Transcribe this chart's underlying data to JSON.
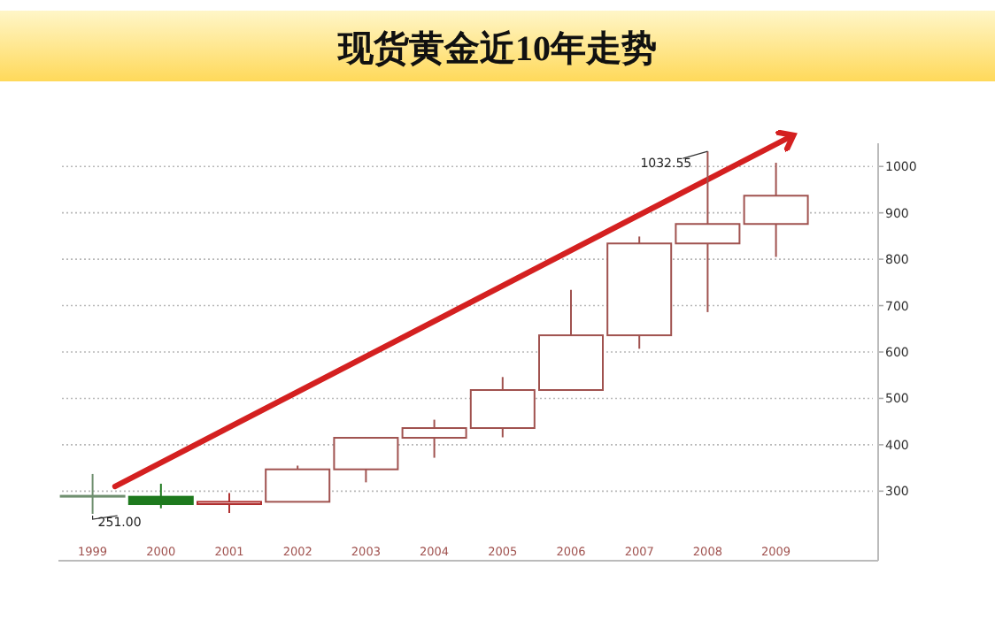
{
  "chart_data": {
    "type": "candlestick",
    "title": "现货黄金近10年走势",
    "categories": [
      "1999",
      "2000",
      "2001",
      "2002",
      "2003",
      "2004",
      "2005",
      "2006",
      "2007",
      "2008",
      "2009"
    ],
    "ohlc": [
      [
        290,
        337,
        251,
        288
      ],
      [
        288,
        316,
        263,
        272
      ],
      [
        272,
        296,
        253,
        277
      ],
      [
        277,
        355,
        277,
        347
      ],
      [
        347,
        416,
        319,
        415
      ],
      [
        415,
        454,
        372,
        436
      ],
      [
        436,
        546,
        416,
        518
      ],
      [
        518,
        734,
        518,
        636
      ],
      [
        636,
        849,
        607,
        834
      ],
      [
        834,
        1032.55,
        686,
        876
      ],
      [
        876,
        1008,
        805,
        937
      ]
    ],
    "colors": [
      "#6f8f6f",
      "#1e7a1e",
      "#b03030",
      "#a0524f",
      "#a0524f",
      "#a0524f",
      "#a0524f",
      "#a0524f",
      "#a0524f",
      "#a0524f",
      "#a0524f"
    ],
    "ylim": [
      150,
      1050
    ],
    "yticks": [
      300,
      400,
      500,
      600,
      700,
      800,
      900,
      1000
    ],
    "grid": "y",
    "annotations": [
      {
        "text": "251.00",
        "x": "1999",
        "y": 251
      },
      {
        "text": "1032.55",
        "x": "2008",
        "y": 1032.55
      }
    ]
  }
}
